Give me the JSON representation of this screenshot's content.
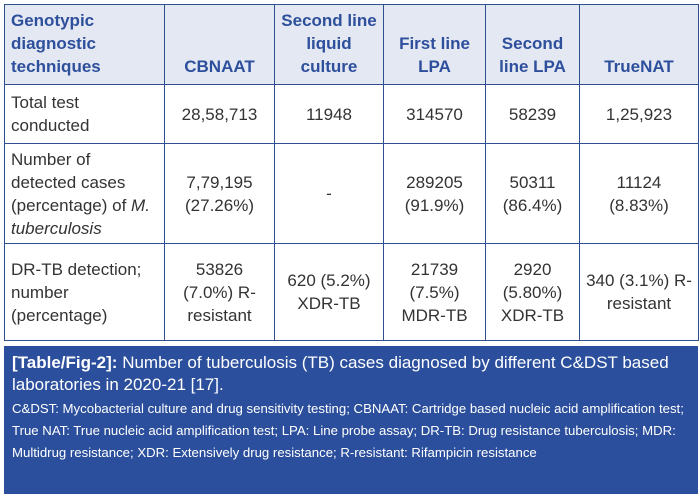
{
  "table": {
    "headers": [
      "Genotypic diagnostic techniques",
      "CBNAAT",
      "Second line liquid culture",
      "First line LPA",
      "Second line LPA",
      "TrueNAT"
    ],
    "rows": [
      {
        "label": "Total test conducted",
        "cells": [
          "28,58,713",
          "11948",
          "314570",
          "58239",
          "1,25,923"
        ]
      },
      {
        "label": "Number of detected cases (percentage) of",
        "label_italic": "M. tuberculosis",
        "cells": [
          "7,79,195 (27.26%)",
          "-",
          "289205 (91.9%)",
          "50311 (86.4%)",
          "11124 (8.83%)"
        ]
      },
      {
        "label": "DR-TB detection; number (percentage)",
        "cells": [
          "53826 (7.0%) R-resistant",
          "620 (5.2%) XDR-TB",
          "21739 (7.5%) MDR-TB",
          "2920 (5.80%) XDR-TB",
          "340 (3.1%) R-resistant"
        ]
      }
    ]
  },
  "caption": {
    "label": "[Table/Fig-2]:",
    "title": "Number of tuberculosis (TB) cases diagnosed by different C&DST based laboratories in 2020-21 [17].",
    "notes": "C&DST: Mycobacterial culture and drug sensitivity testing; CBNAAT: Cartridge based nucleic acid amplification test; True NAT: True nucleic acid amplification test; LPA: Line probe assay; DR-TB: Drug resistance tuberculosis; MDR: Multidrug resistance; XDR: Extensively drug resistance; R-resistant: Rifampicin resistance"
  },
  "colors": {
    "header_bg": "#e3e8f3",
    "header_text": "#2e4f9c",
    "caption_bg": "#2b4f9c"
  }
}
